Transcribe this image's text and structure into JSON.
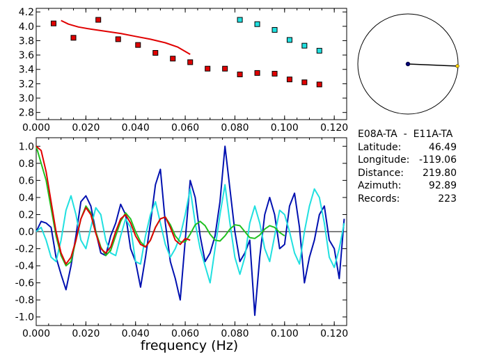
{
  "station_pair": "E08A-TA  -  E11A-TA",
  "info": [
    {
      "key": "Latitude:",
      "value": "46.49"
    },
    {
      "key": "Longitude:",
      "value": "-119.06"
    },
    {
      "key": "Distance:",
      "value": "219.80"
    },
    {
      "key": "Azimuth:",
      "value": "92.89"
    },
    {
      "key": "Records:",
      "value": "223"
    }
  ],
  "colors": {
    "red": "#e00000",
    "cyan": "#20e0e0",
    "blue": "#0010b0",
    "green": "#20c020",
    "yellow": "#ffd000",
    "navy": "#000070"
  },
  "chart_data": [
    {
      "type": "scatter",
      "xlabel": "",
      "ylabel": "",
      "xlim": [
        0,
        0.125
      ],
      "ylim": [
        2.7,
        4.25
      ],
      "x_ticks": [
        "0.000",
        "0.020",
        "0.040",
        "0.060",
        "0.080",
        "0.100",
        "0.120"
      ],
      "y_ticks": [
        "4.2",
        "4.0",
        "3.8",
        "3.6",
        "3.4",
        "3.2",
        "3.0",
        "2.8"
      ],
      "series": [
        {
          "marker": "square",
          "color": "#e00000",
          "x": [
            0.007,
            0.015,
            0.025,
            0.033,
            0.041,
            0.048,
            0.055,
            0.062,
            0.069,
            0.076,
            0.082,
            0.089,
            0.096,
            0.102,
            0.108,
            0.114
          ],
          "y": [
            4.04,
            3.84,
            4.09,
            3.82,
            3.74,
            3.63,
            3.55,
            3.5,
            3.41,
            3.41,
            3.33,
            3.35,
            3.34,
            3.26,
            3.22,
            3.19
          ]
        },
        {
          "marker": "square",
          "color": "#20e0e0",
          "x": [
            0.082,
            0.089,
            0.096,
            0.102,
            0.108,
            0.114
          ],
          "y": [
            4.09,
            4.03,
            3.95,
            3.81,
            3.73,
            3.66
          ]
        },
        {
          "line": true,
          "color": "#e00000",
          "x": [
            0.01,
            0.013,
            0.017,
            0.022,
            0.028,
            0.034,
            0.04,
            0.046,
            0.052,
            0.057,
            0.062
          ],
          "y": [
            4.08,
            4.03,
            3.99,
            3.96,
            3.93,
            3.9,
            3.86,
            3.82,
            3.77,
            3.71,
            3.61
          ]
        }
      ]
    },
    {
      "type": "line",
      "xlabel": "frequency (Hz)",
      "ylabel": "",
      "xlim": [
        0,
        0.125
      ],
      "ylim": [
        -1.1,
        1.1
      ],
      "x_ticks": [
        "0.000",
        "0.020",
        "0.040",
        "0.060",
        "0.080",
        "0.100",
        "0.120"
      ],
      "y_ticks": [
        "1.0",
        "0.8",
        "0.6",
        "0.4",
        "0.2",
        "0.0",
        "-0.2",
        "-0.4",
        "-0.6",
        "-0.8",
        "-1.0"
      ],
      "series": [
        {
          "color": "#0010b0",
          "x": [
            0.0,
            0.002,
            0.004,
            0.006,
            0.008,
            0.01,
            0.012,
            0.014,
            0.016,
            0.018,
            0.02,
            0.022,
            0.024,
            0.026,
            0.028,
            0.03,
            0.032,
            0.034,
            0.036,
            0.038,
            0.04,
            0.042,
            0.044,
            0.046,
            0.048,
            0.05,
            0.052,
            0.054,
            0.056,
            0.058,
            0.06,
            0.062,
            0.064,
            0.066,
            0.068,
            0.07,
            0.072,
            0.074,
            0.076,
            0.078,
            0.08,
            0.082,
            0.084,
            0.086,
            0.088,
            0.09,
            0.092,
            0.094,
            0.096,
            0.098,
            0.1,
            0.102,
            0.104,
            0.106,
            0.108,
            0.11,
            0.112,
            0.114,
            0.116,
            0.118,
            0.12,
            0.122,
            0.124
          ],
          "y": [
            0.0,
            0.12,
            0.1,
            0.05,
            -0.3,
            -0.5,
            -0.68,
            -0.4,
            -0.05,
            0.35,
            0.42,
            0.3,
            0.0,
            -0.25,
            -0.28,
            -0.05,
            0.1,
            0.32,
            0.2,
            -0.2,
            -0.35,
            -0.65,
            -0.3,
            0.1,
            0.55,
            0.73,
            0.1,
            -0.35,
            -0.55,
            -0.8,
            -0.1,
            0.6,
            0.4,
            -0.05,
            -0.35,
            -0.25,
            -0.05,
            0.35,
            1.0,
            0.5,
            0.0,
            -0.35,
            -0.25,
            -0.1,
            -0.98,
            -0.3,
            0.2,
            0.4,
            0.2,
            -0.2,
            -0.15,
            0.3,
            0.45,
            0.05,
            -0.6,
            -0.3,
            -0.1,
            0.2,
            0.3,
            -0.1,
            -0.2,
            -0.55,
            0.15
          ]
        },
        {
          "color": "#20e0e0",
          "x": [
            0.0,
            0.002,
            0.004,
            0.006,
            0.008,
            0.01,
            0.012,
            0.014,
            0.016,
            0.018,
            0.02,
            0.022,
            0.024,
            0.026,
            0.028,
            0.03,
            0.032,
            0.034,
            0.036,
            0.038,
            0.04,
            0.042,
            0.044,
            0.046,
            0.048,
            0.05,
            0.052,
            0.054,
            0.056,
            0.058,
            0.06,
            0.062,
            0.064,
            0.066,
            0.068,
            0.07,
            0.072,
            0.074,
            0.076,
            0.078,
            0.08,
            0.082,
            0.084,
            0.086,
            0.088,
            0.09,
            0.092,
            0.094,
            0.096,
            0.098,
            0.1,
            0.102,
            0.104,
            0.106,
            0.108,
            0.11,
            0.112,
            0.114,
            0.116,
            0.118,
            0.12,
            0.122,
            0.124
          ],
          "y": [
            0.0,
            0.05,
            -0.1,
            -0.3,
            -0.35,
            -0.1,
            0.25,
            0.42,
            0.2,
            -0.1,
            -0.2,
            0.05,
            0.28,
            0.2,
            -0.1,
            -0.25,
            -0.28,
            -0.05,
            0.15,
            0.05,
            -0.35,
            -0.38,
            -0.05,
            0.2,
            0.35,
            0.1,
            -0.15,
            -0.3,
            -0.2,
            -0.05,
            0.2,
            0.5,
            0.1,
            -0.2,
            -0.4,
            -0.6,
            -0.2,
            0.2,
            0.55,
            0.1,
            -0.3,
            -0.5,
            -0.3,
            0.1,
            0.3,
            0.1,
            -0.2,
            -0.35,
            -0.05,
            0.25,
            0.2,
            0.0,
            -0.25,
            -0.38,
            0.0,
            0.3,
            0.5,
            0.4,
            0.1,
            -0.3,
            -0.42,
            -0.2,
            0.1
          ]
        },
        {
          "color": "#20c020",
          "x": [
            0.0,
            0.004,
            0.008,
            0.01,
            0.012,
            0.014,
            0.016,
            0.018,
            0.02,
            0.022,
            0.024,
            0.026,
            0.028,
            0.03,
            0.032,
            0.034,
            0.036,
            0.038,
            0.04,
            0.042,
            0.044,
            0.046,
            0.048,
            0.05,
            0.052,
            0.054,
            0.056,
            0.058,
            0.06,
            0.062,
            0.064,
            0.066,
            0.068,
            0.07,
            0.072,
            0.074,
            0.076,
            0.078,
            0.08,
            0.082,
            0.084,
            0.086,
            0.088,
            0.09,
            0.092,
            0.094,
            0.096,
            0.098,
            0.1
          ],
          "y": [
            1.0,
            0.6,
            -0.05,
            -0.28,
            -0.4,
            -0.35,
            -0.1,
            0.15,
            0.3,
            0.22,
            0.0,
            -0.18,
            -0.28,
            -0.22,
            -0.05,
            0.12,
            0.22,
            0.15,
            0.0,
            -0.12,
            -0.18,
            -0.1,
            0.05,
            0.15,
            0.17,
            0.08,
            -0.05,
            -0.12,
            -0.12,
            -0.03,
            0.08,
            0.12,
            0.07,
            -0.03,
            -0.1,
            -0.11,
            -0.05,
            0.03,
            0.08,
            0.07,
            0.0,
            -0.07,
            -0.08,
            -0.04,
            0.03,
            0.07,
            0.05,
            -0.01,
            -0.05
          ]
        },
        {
          "color": "#e00000",
          "x": [
            0.0,
            0.002,
            0.004,
            0.006,
            0.008,
            0.01,
            0.012,
            0.014,
            0.016,
            0.018,
            0.02,
            0.022,
            0.024,
            0.026,
            0.028,
            0.03,
            0.032,
            0.034,
            0.036,
            0.038,
            0.04,
            0.042,
            0.044,
            0.046,
            0.048,
            0.05,
            0.052,
            0.054,
            0.056,
            0.058,
            0.06,
            0.062
          ],
          "y": [
            1.0,
            0.95,
            0.7,
            0.35,
            0.0,
            -0.25,
            -0.38,
            -0.3,
            -0.1,
            0.15,
            0.28,
            0.2,
            -0.02,
            -0.2,
            -0.25,
            -0.18,
            0.0,
            0.15,
            0.2,
            0.1,
            -0.05,
            -0.15,
            -0.18,
            -0.1,
            0.05,
            0.15,
            0.17,
            0.05,
            -0.1,
            -0.15,
            -0.08,
            -0.1
          ]
        }
      ]
    }
  ]
}
